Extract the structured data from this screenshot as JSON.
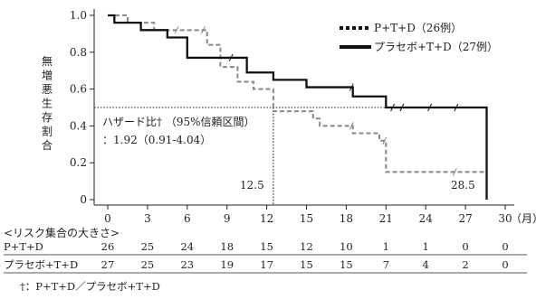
{
  "chart_data": {
    "type": "line",
    "title": "",
    "ylabel": "無増悪生存割合",
    "xlabel": "（月）",
    "xlim": [
      0,
      30
    ],
    "ylim": [
      0,
      1.0
    ],
    "x_ticks": [
      "0",
      "3",
      "6",
      "9",
      "12",
      "15",
      "18",
      "21",
      "24",
      "27",
      "30"
    ],
    "y_ticks": [
      "0",
      "0.2",
      "0.4",
      "0.6",
      "0.8",
      "1.0"
    ],
    "grid": false,
    "legend_position": "top-right",
    "series": [
      {
        "name": "P+T+D（26例）",
        "style": "dashed",
        "color": "#888888",
        "x": [
          0,
          1.5,
          3.5,
          7.5,
          8.5,
          9.8,
          11.0,
          12.5,
          15.5,
          16.0,
          18.5,
          20.5,
          21.0,
          28.5
        ],
        "y": [
          1.0,
          0.96,
          0.92,
          0.84,
          0.72,
          0.64,
          0.6,
          0.48,
          0.44,
          0.4,
          0.36,
          0.32,
          0.15,
          0.15
        ],
        "censor_x": [
          5.2,
          7.2,
          18.4,
          20.9,
          26.2
        ]
      },
      {
        "name": "プラセボ+T+D（27例）",
        "style": "solid",
        "color": "#111111",
        "x": [
          0,
          0.5,
          2.5,
          4.5,
          6.0,
          10.5,
          12.5,
          15.0,
          18.5,
          21.0,
          28.6,
          28.6
        ],
        "y": [
          1.0,
          0.96,
          0.92,
          0.88,
          0.77,
          0.69,
          0.65,
          0.61,
          0.56,
          0.5,
          0.5,
          0.0
        ],
        "censor_x": [
          9.3,
          18.4,
          21.5,
          22.2,
          24.3,
          26.3
        ]
      }
    ],
    "reference_lines": {
      "median_y": 0.5,
      "median_x_pt": 12.5,
      "median_x_placebo": 28.5
    },
    "median_labels": [
      "12.5",
      "28.5"
    ],
    "annotation": {
      "line1": "ハザード比† （95%信頼区間）",
      "line2": "：1.92（0.91-4.04）"
    },
    "risk_table": {
      "title": "<リスク集合の大きさ>",
      "rows": [
        {
          "name": "P+T+D",
          "values": [
            "26",
            "25",
            "24",
            "18",
            "15",
            "12",
            "10",
            "1",
            "1",
            "0",
            "0"
          ]
        },
        {
          "name": "プラセボ+T+D",
          "values": [
            "27",
            "25",
            "23",
            "19",
            "17",
            "15",
            "15",
            "7",
            "4",
            "2",
            "0"
          ]
        }
      ]
    },
    "footnote": "†：P+T+D／プラセボ+T+D"
  }
}
